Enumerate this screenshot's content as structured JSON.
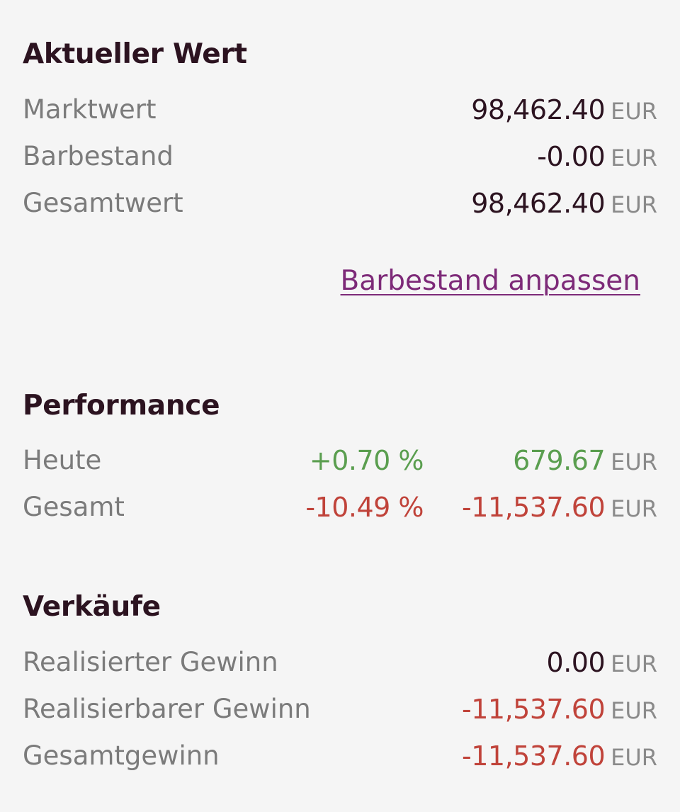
{
  "aktueller_wert": {
    "title": "Aktueller Wert",
    "rows": [
      {
        "label": "Marktwert",
        "value": "98,462.40",
        "unit": "EUR"
      },
      {
        "label": "Barbestand",
        "value": "-0.00",
        "unit": "EUR"
      },
      {
        "label": "Gesamtwert",
        "value": "98,462.40",
        "unit": "EUR"
      }
    ],
    "adjust_link": "Barbestand anpassen"
  },
  "performance": {
    "title": "Performance",
    "rows": [
      {
        "label": "Heute",
        "percent": "+0.70 %",
        "value": "679.67",
        "unit": "EUR"
      },
      {
        "label": "Gesamt",
        "percent": "-10.49 %",
        "value": "-11,537.60",
        "unit": "EUR"
      }
    ]
  },
  "verkaeufe": {
    "title": "Verkäufe",
    "rows": [
      {
        "label": "Realisierter Gewinn",
        "value": "0.00",
        "unit": "EUR"
      },
      {
        "label": "Realisierbarer Gewinn",
        "value": "-11,537.60",
        "unit": "EUR"
      },
      {
        "label": "Gesamtgewinn",
        "value": "-11,537.60",
        "unit": "EUR"
      }
    ]
  },
  "colors": {
    "positive": "#5a9e4f",
    "negative": "#c0433a",
    "link": "#7d2a78",
    "title": "#2c1320"
  }
}
